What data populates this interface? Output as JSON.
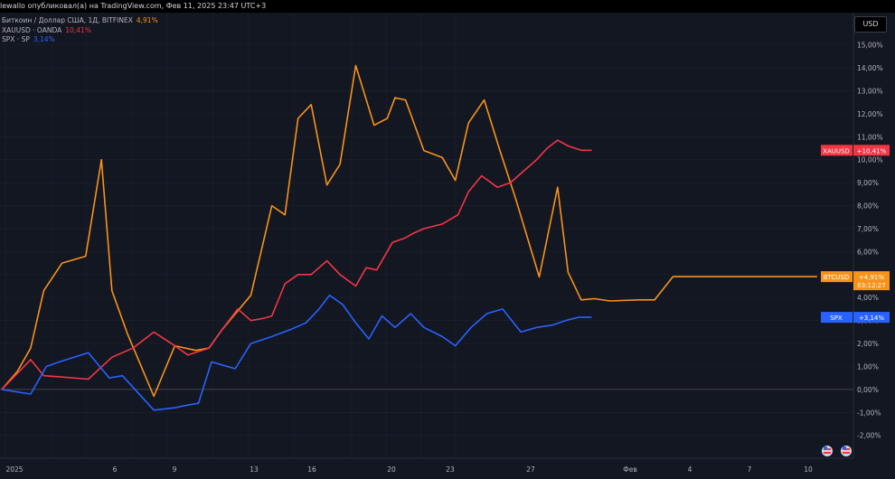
{
  "header": {
    "text": "lewallo опубликовал(а) на TradingView.com, Фев 11, 2025 23:47 UTC+3"
  },
  "legend": [
    {
      "name": "Биткоин / Доллар США, 1Д, BITFINEX",
      "value": "4,91%",
      "color": "#f7931a"
    },
    {
      "name": "XAUUSD · OANDA",
      "value": "10,41%",
      "color": "#f23645"
    },
    {
      "name": "SPX · SP",
      "value": "3,14%",
      "color": "#2962ff"
    }
  ],
  "currency_button": "USD",
  "badges": {
    "xau": {
      "label": "XAUUSD",
      "value": "+10,41%",
      "color": "#f23645"
    },
    "btc": {
      "label": "BTCUSD",
      "value": "+4,91%",
      "sub": "03:12:27",
      "color": "#f7931a"
    },
    "spx": {
      "label": "SPX",
      "value": "+3,14%",
      "color": "#2962ff"
    }
  },
  "colors": {
    "background": "#131722",
    "grid": "#1e222d",
    "zero_line": "#434651",
    "axis_text": "#b2b5be"
  },
  "chart_data": {
    "type": "line",
    "ylim": [
      -2.6,
      15.3
    ],
    "y_ticks": [
      15,
      14,
      13,
      12,
      11,
      10,
      9,
      8,
      7,
      6,
      5,
      4,
      3,
      2,
      1,
      0,
      -1,
      -2
    ],
    "y_tick_labels": [
      "15,00%",
      "14,00%",
      "13,00%",
      "12,00%",
      "11,00%",
      "10,00%",
      "9,00%",
      "8,00%",
      "7,00%",
      "6,00%",
      "5,00%",
      "4,00%",
      "3,00%",
      "2,00%",
      "1,00%",
      "0,00%",
      "-1,00%",
      "-2,00%"
    ],
    "x_ticks": [
      {
        "label": "2025",
        "index": 0
      },
      {
        "label": "6",
        "index": 4
      },
      {
        "label": "9",
        "index": 7
      },
      {
        "label": "13",
        "index": 11
      },
      {
        "label": "16",
        "index": 14
      },
      {
        "label": "20",
        "index": 18
      },
      {
        "label": "23",
        "index": 21
      },
      {
        "label": "27",
        "index": 25
      },
      {
        "label": "Фев",
        "index": 30
      },
      {
        "label": "4",
        "index": 33
      },
      {
        "label": "7",
        "index": 36
      },
      {
        "label": "10",
        "index": 39
      }
    ],
    "x_count": 42,
    "series": [
      {
        "name": "BTCUSD",
        "color": "#f7931a",
        "x": [
          0,
          0.6,
          1.1,
          1.6,
          2.3,
          3.2,
          3.8,
          4.2,
          4.8,
          5.8,
          6.6,
          7.4,
          7.9,
          8.4,
          9.5,
          10.3,
          10.8,
          11.3,
          11.8,
          12.4,
          12.9,
          13.5,
          14.2,
          14.7,
          15.0,
          15.4,
          16.1,
          16.8,
          17.3,
          17.8,
          18.4,
          19.0,
          19.6,
          20.5,
          21.2,
          21.6,
          22.1,
          22.6,
          23.2,
          24.3,
          24.9,
          25.6,
          26.2,
          26.8,
          27.6,
          28.4,
          29.1,
          29.6,
          30.4,
          31.1
        ],
        "values": [
          0,
          0.8,
          1.8,
          4.3,
          5.5,
          5.8,
          10.0,
          4.3,
          2.4,
          -0.3,
          1.9,
          1.7,
          1.8,
          2.6,
          4.1,
          8.0,
          7.6,
          11.8,
          12.4,
          8.9,
          9.8,
          14.1,
          11.5,
          11.8,
          12.7,
          12.6,
          10.4,
          10.1,
          9.1,
          11.6,
          12.6,
          10.4,
          8.3,
          4.9,
          8.8,
          5.1,
          3.9,
          3.95,
          3.85,
          3.9,
          3.9,
          4.91,
          4.91,
          4.91,
          4.91,
          4.91,
          4.91,
          4.91,
          4.91,
          4.91
        ]
      },
      {
        "name": "XAUUSD",
        "color": "#f23645",
        "x": [
          0,
          1.1,
          1.6,
          2.2,
          3.3,
          4.2,
          5.0,
          5.8,
          6.6,
          7.1,
          7.9,
          8.4,
          9.0,
          9.5,
          10.0,
          10.3,
          10.8,
          11.3,
          11.8,
          12.4,
          12.9,
          13.5,
          13.9,
          14.3,
          14.9,
          15.4,
          15.7,
          16.1,
          16.8,
          17.4,
          17.8,
          18.3,
          18.9,
          19.4,
          19.9,
          20.4,
          20.8,
          21.2,
          21.6,
          22.1,
          22.5
        ],
        "values": [
          0,
          1.3,
          0.6,
          0.55,
          0.45,
          1.4,
          1.8,
          2.5,
          1.9,
          1.5,
          1.8,
          2.6,
          3.5,
          3.0,
          3.1,
          3.2,
          4.6,
          5.0,
          5.0,
          5.6,
          5.0,
          4.5,
          5.3,
          5.2,
          6.4,
          6.6,
          6.8,
          7.0,
          7.2,
          7.6,
          8.6,
          9.3,
          8.8,
          9.0,
          9.5,
          10.0,
          10.5,
          10.85,
          10.6,
          10.41,
          10.41
        ]
      },
      {
        "name": "SPX",
        "color": "#2962ff",
        "x": [
          0,
          1.1,
          1.7,
          2.2,
          3.3,
          4.1,
          4.6,
          5.8,
          6.6,
          7.0,
          7.5,
          8.0,
          8.9,
          9.5,
          10.3,
          11.0,
          11.6,
          12.1,
          12.5,
          13.0,
          13.5,
          14.0,
          14.5,
          15.0,
          15.6,
          16.1,
          16.8,
          17.3,
          17.9,
          18.5,
          19.1,
          19.8,
          20.4,
          21.0,
          21.5,
          22.0,
          22.5
        ],
        "values": [
          0,
          -0.2,
          1.0,
          1.2,
          1.6,
          0.5,
          0.6,
          -0.9,
          -0.8,
          -0.7,
          -0.6,
          1.2,
          0.9,
          2.0,
          2.3,
          2.6,
          2.9,
          3.5,
          4.1,
          3.7,
          2.9,
          2.2,
          3.2,
          2.7,
          3.3,
          2.7,
          2.3,
          1.9,
          2.7,
          3.3,
          3.5,
          2.5,
          2.7,
          2.8,
          3.0,
          3.14,
          3.14
        ]
      }
    ]
  }
}
